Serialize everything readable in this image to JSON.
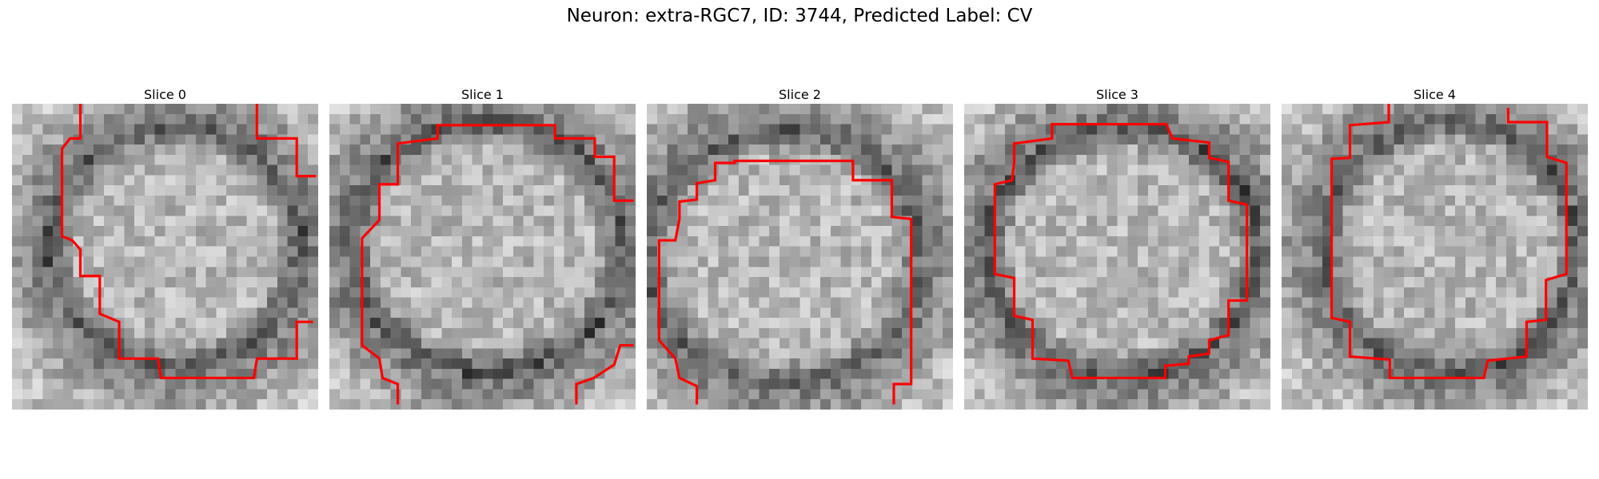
{
  "figure": {
    "title": "Neuron: extra-RGC7, ID: 3744, Predicted Label: CV"
  },
  "slices": [
    {
      "title": "Slice 0"
    },
    {
      "title": "Slice 1"
    },
    {
      "title": "Slice 2"
    },
    {
      "title": "Slice 3"
    },
    {
      "title": "Slice 4"
    }
  ],
  "style": {
    "contour_color": "#ff0000",
    "colormap": "grayscale"
  }
}
